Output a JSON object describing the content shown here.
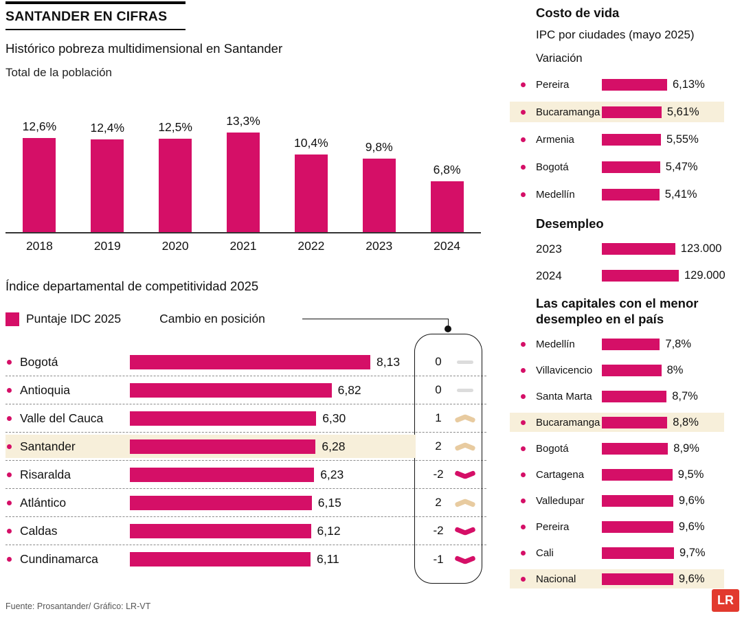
{
  "header": {
    "title": "SANTANDER EN CIFRAS"
  },
  "footer": {
    "source": "Fuente: Prosantander/ Gráfico: LR-VT",
    "logo": "LR"
  },
  "colors": {
    "accent": "#d50f67",
    "highlight_bg": "#f7efda",
    "change_up": "#e8cba0",
    "change_down": "#d50f67",
    "change_zero": "#dcdcdc",
    "logo_red": "#e23a2e"
  },
  "chart_data": [
    {
      "id": "poverty",
      "type": "bar",
      "title": "Histórico pobreza multidimensional en Santander",
      "subtitle": "Total de la población",
      "categories": [
        "2018",
        "2019",
        "2020",
        "2021",
        "2022",
        "2023",
        "2024"
      ],
      "values": [
        12.6,
        12.4,
        12.5,
        13.3,
        10.4,
        9.8,
        6.8
      ],
      "ylim": [
        0,
        13.3
      ],
      "columns": [
        {
          "year": "2018",
          "value": 12.6,
          "label": "12,6%"
        },
        {
          "year": "2019",
          "value": 12.4,
          "label": "12,4%"
        },
        {
          "year": "2020",
          "value": 12.5,
          "label": "12,5%"
        },
        {
          "year": "2021",
          "value": 13.3,
          "label": "13,3%"
        },
        {
          "year": "2022",
          "value": 10.4,
          "label": "10,4%"
        },
        {
          "year": "2023",
          "value": 9.8,
          "label": "9,8%"
        },
        {
          "year": "2024",
          "value": 6.8,
          "label": "6,8%"
        }
      ]
    },
    {
      "id": "idc",
      "type": "bar",
      "orientation": "horizontal",
      "title": "Índice departamental de competitividad 2025",
      "legend": {
        "bar_label": "Puntaje IDC 2025",
        "change_label": "Cambio en posición"
      },
      "xmax": 8.13,
      "rows": [
        {
          "name": "Bogotá",
          "value": 8.13,
          "label": "8,13",
          "change": "0",
          "dir": "zero",
          "highlight": false
        },
        {
          "name": "Antioquia",
          "value": 6.82,
          "label": "6,82",
          "change": "0",
          "dir": "zero",
          "highlight": false
        },
        {
          "name": "Valle del Cauca",
          "value": 6.3,
          "label": "6,30",
          "change": "1",
          "dir": "up",
          "highlight": false
        },
        {
          "name": "Santander",
          "value": 6.28,
          "label": "6,28",
          "change": "2",
          "dir": "up",
          "highlight": true
        },
        {
          "name": "Risaralda",
          "value": 6.23,
          "label": "6,23",
          "change": "-2",
          "dir": "down",
          "highlight": false
        },
        {
          "name": "Atlántico",
          "value": 6.15,
          "label": "6,15",
          "change": "2",
          "dir": "up",
          "highlight": false
        },
        {
          "name": "Caldas",
          "value": 6.12,
          "label": "6,12",
          "change": "-2",
          "dir": "down",
          "highlight": false
        },
        {
          "name": "Cundinamarca",
          "value": 6.11,
          "label": "6,11",
          "change": "-1",
          "dir": "down",
          "highlight": false
        }
      ]
    },
    {
      "id": "ipc",
      "type": "bar",
      "orientation": "horizontal",
      "title": "Costo de vida",
      "subtitle": "IPC por ciudades (mayo 2025)",
      "sublabel": "Variación",
      "xmax": 6.13,
      "rows": [
        {
          "name": "Pereira",
          "value": 6.13,
          "label": "6,13%",
          "highlight": false
        },
        {
          "name": "Bucaramanga",
          "value": 5.61,
          "label": "5,61%",
          "highlight": true
        },
        {
          "name": "Armenia",
          "value": 5.55,
          "label": "5,55%",
          "highlight": false
        },
        {
          "name": "Bogotá",
          "value": 5.47,
          "label": "5,47%",
          "highlight": false
        },
        {
          "name": "Medellín",
          "value": 5.41,
          "label": "5,41%",
          "highlight": false
        }
      ]
    },
    {
      "id": "unemployment",
      "type": "bar",
      "orientation": "horizontal",
      "title": "Desempleo",
      "xmax": 129000,
      "rows": [
        {
          "name": "2023",
          "value": 123000,
          "label": "123.000"
        },
        {
          "name": "2024",
          "value": 129000,
          "label": "129.000"
        }
      ]
    },
    {
      "id": "capitals_unemployment",
      "type": "bar",
      "orientation": "horizontal",
      "title": "Las capitales con el menor desempleo en el país",
      "xmax": 9.7,
      "rows": [
        {
          "name": "Medellín",
          "value": 7.8,
          "label": "7,8%",
          "highlight": false
        },
        {
          "name": "Villavicencio",
          "value": 8.0,
          "label": "8%",
          "highlight": false
        },
        {
          "name": "Santa Marta",
          "value": 8.7,
          "label": "8,7%",
          "highlight": false
        },
        {
          "name": "Bucaramanga",
          "value": 8.8,
          "label": "8,8%",
          "highlight": true
        },
        {
          "name": "Bogotá",
          "value": 8.9,
          "label": "8,9%",
          "highlight": false
        },
        {
          "name": "Cartagena",
          "value": 9.5,
          "label": "9,5%",
          "highlight": false
        },
        {
          "name": "Valledupar",
          "value": 9.6,
          "label": "9,6%",
          "highlight": false
        },
        {
          "name": "Pereira",
          "value": 9.6,
          "label": "9,6%",
          "highlight": false
        },
        {
          "name": "Cali",
          "value": 9.7,
          "label": "9,7%",
          "highlight": false
        },
        {
          "name": "Nacional",
          "value": 9.6,
          "label": "9,6%",
          "highlight": true
        }
      ]
    }
  ]
}
